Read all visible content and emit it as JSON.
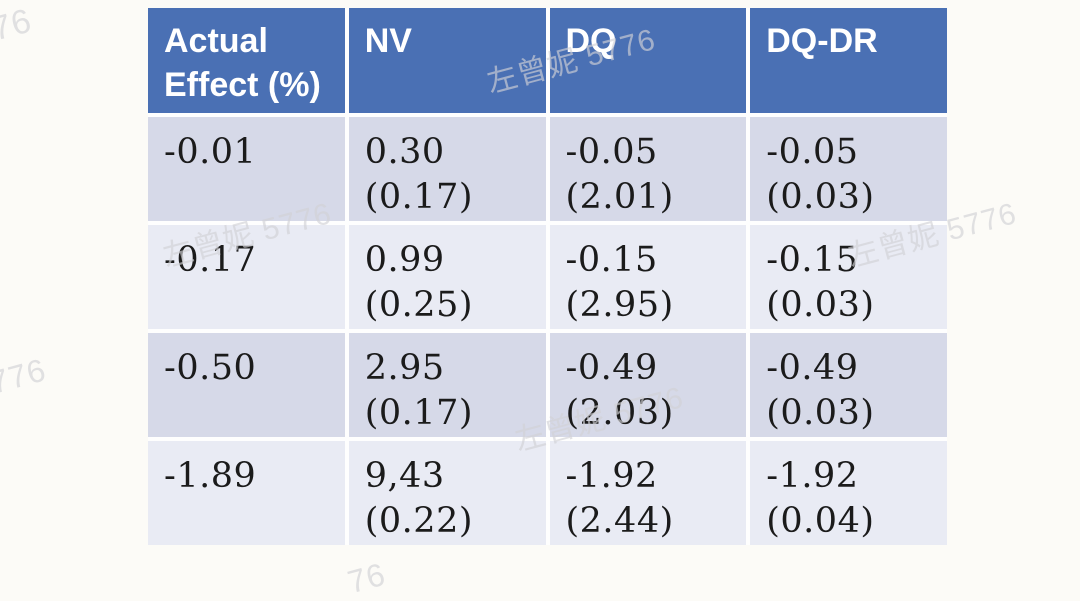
{
  "chart_data": {
    "type": "table",
    "columns": [
      "Actual Effect (%)",
      "NV",
      "DQ",
      "DQ-DR"
    ],
    "rows": [
      [
        "-0.01",
        "0.30 (0.17)",
        "-0.05 (2.01)",
        "-0.05 (0.03)"
      ],
      [
        "-0.17",
        "0.99 (0.25)",
        "-0.15 (2.95)",
        "-0.15 (0.03)"
      ],
      [
        "-0.50",
        "2.95 (0.17)",
        "-0.49 (2.03)",
        "-0.49 (0.03)"
      ],
      [
        "-1.89",
        "9,43 (0.22)",
        "-1.92 (2.44)",
        "-1.92 (0.04)"
      ]
    ]
  },
  "table": {
    "headers": [
      "Actual Effect (%)",
      "NV",
      "DQ",
      "DQ-DR"
    ],
    "rows": [
      {
        "cells": [
          {
            "value": "-0.01",
            "se": ""
          },
          {
            "value": "0.30",
            "se": "(0.17)"
          },
          {
            "value": "-0.05",
            "se": "(2.01)"
          },
          {
            "value": "-0.05",
            "se": "(0.03)"
          }
        ]
      },
      {
        "cells": [
          {
            "value": "-0.17",
            "se": ""
          },
          {
            "value": "0.99",
            "se": "(0.25)"
          },
          {
            "value": "-0.15",
            "se": "(2.95)"
          },
          {
            "value": "-0.15",
            "se": "(0.03)"
          }
        ]
      },
      {
        "cells": [
          {
            "value": "-0.50",
            "se": ""
          },
          {
            "value": "2.95",
            "se": "(0.17)"
          },
          {
            "value": "-0.49",
            "se": "(2.03)"
          },
          {
            "value": "-0.49",
            "se": "(0.03)"
          }
        ]
      },
      {
        "cells": [
          {
            "value": "-1.89",
            "se": ""
          },
          {
            "value": "9,43",
            "se": "(0.22)"
          },
          {
            "value": "-1.92",
            "se": "(2.44)"
          },
          {
            "value": "-1.92",
            "se": "(0.04)"
          }
        ]
      }
    ]
  },
  "watermarks": {
    "full_text": "左曾妮 5776",
    "fragments": [
      {
        "text": "76"
      },
      {
        "text": "左曾妮 5776"
      },
      {
        "text": "左曾妮 5776"
      },
      {
        "text": "左曾妮 5776"
      },
      {
        "text": "776"
      },
      {
        "text": "左曾妮 5776"
      },
      {
        "text": "76"
      }
    ]
  },
  "colors": {
    "header_bg": "#4a70b4",
    "header_text": "#ffffff",
    "row_dark": "#d6d9e8",
    "row_light": "#e9ebf4",
    "body_text": "#1b1b1b",
    "page_bg": "#fcfbf7",
    "watermark": "#d1d1d6"
  }
}
